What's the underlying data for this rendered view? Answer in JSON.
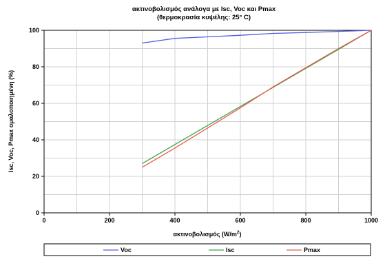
{
  "chart_data": {
    "type": "line",
    "title": "ακτινοβολισμός ανάλογα με Isc, Voc και Pmax",
    "subtitle": "(θερμοκρασία κυψέλης: 25° C)",
    "xlabel_main": "ακτινοβολισμός (W/m",
    "xlabel_sup": "2",
    "xlabel_close": ")",
    "ylabel": "Isc, Voc, Pmax ομαλοποιημένη (%)",
    "xlim": [
      0,
      1000
    ],
    "ylim": [
      0,
      100
    ],
    "xticks": [
      "0",
      "200",
      "400",
      "600",
      "800",
      "1000"
    ],
    "yticks": [
      "0",
      "20",
      "40",
      "60",
      "80",
      "100"
    ],
    "grid": true,
    "legend_position": "bottom",
    "series": [
      {
        "name": "Voc",
        "color": "#4f5fe0",
        "x": [
          300,
          400,
          500,
          600,
          700,
          800,
          900,
          1000
        ],
        "y": [
          93,
          95.6,
          96.4,
          97.3,
          98.3,
          98.8,
          99.4,
          100
        ]
      },
      {
        "name": "Isc",
        "color": "#3aa64a",
        "x": [
          300,
          1000
        ],
        "y": [
          27,
          100
        ]
      },
      {
        "name": "Pmax",
        "color": "#ee5a4e",
        "x": [
          300,
          400,
          500,
          600,
          700,
          800,
          900,
          1000
        ],
        "y": [
          25,
          35.5,
          46.5,
          57.5,
          69,
          79.5,
          90,
          100
        ]
      }
    ]
  }
}
